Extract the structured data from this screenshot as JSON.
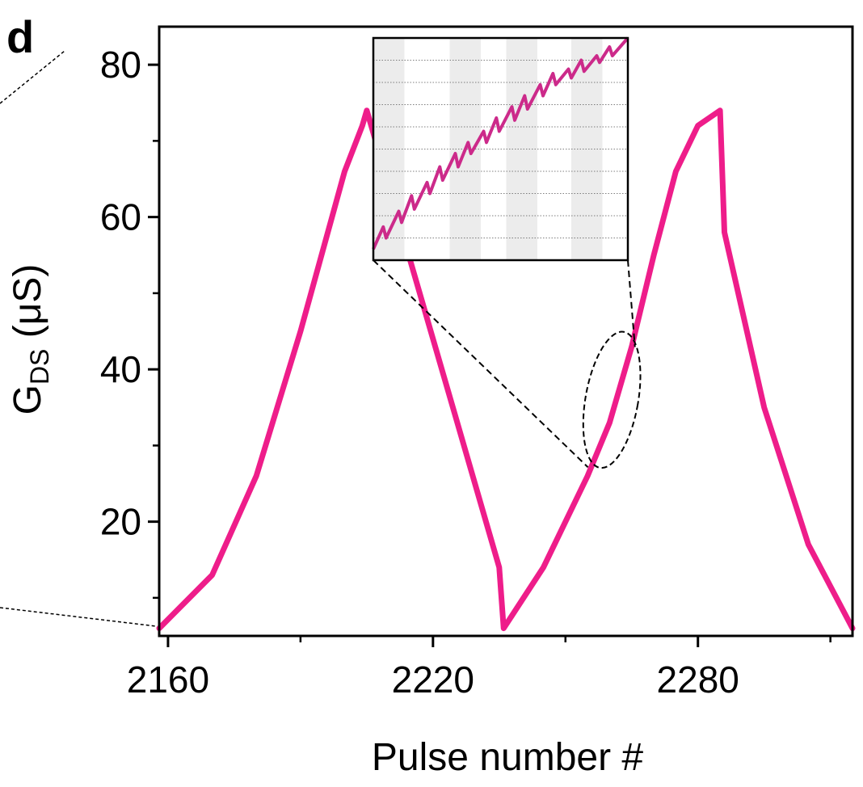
{
  "chart_data": {
    "type": "line",
    "panel_label": "d",
    "xlabel": "Pulse number #",
    "ylabel_main": "G",
    "ylabel_sub": "DS",
    "ylabel_unit": " (μS)",
    "xlim": [
      2158,
      2315
    ],
    "ylim": [
      5,
      85
    ],
    "xticks": [
      2160,
      2220,
      2280
    ],
    "yticks": [
      20,
      40,
      60,
      80
    ],
    "x_minor_ticks": [
      2190,
      2250,
      2310
    ],
    "y_minor_ticks": [
      10,
      30,
      50,
      70
    ],
    "line_color": "#ee1d8a",
    "series": [
      {
        "x": [
          2158,
          2170,
          2180,
          2190,
          2200,
          2204,
          2205,
          2215,
          2225,
          2235,
          2236,
          2245,
          2255,
          2260,
          2265,
          2270,
          2275,
          2280,
          2285,
          2286,
          2295,
          2305,
          2315
        ],
        "y": [
          6,
          13,
          26,
          45,
          66,
          72,
          74,
          54,
          34,
          14,
          6,
          14,
          26,
          33,
          43,
          55,
          66,
          72,
          74,
          58,
          35,
          17,
          6
        ]
      }
    ],
    "zoom_region": {
      "x": [
        2256,
        2265
      ],
      "y": [
        28,
        44
      ]
    },
    "inset": {
      "x": [
        0,
        9
      ],
      "y": [
        0,
        10
      ],
      "shaded_bands": [
        [
          0,
          0.4
        ],
        [
          1,
          1.4
        ],
        [
          2,
          2.4
        ],
        [
          3,
          3.4
        ]
      ],
      "series": {
        "x": [
          0,
          0.35,
          0.45,
          0.9,
          1.0,
          1.35,
          1.45,
          1.9,
          2.0,
          2.35,
          2.45,
          2.9,
          3.0,
          3.35,
          3.45,
          3.9,
          4.0,
          4.35,
          4.45,
          4.9,
          5.0,
          5.35,
          5.45,
          5.9,
          6.0,
          6.35,
          6.45,
          6.9,
          7.0,
          7.35,
          7.45,
          7.9,
          8.0,
          8.35,
          8.45,
          9.0
        ],
        "y": [
          0.5,
          1.5,
          1.0,
          2.2,
          1.7,
          2.9,
          2.3,
          3.5,
          3.0,
          4.2,
          3.6,
          4.8,
          4.2,
          5.3,
          4.8,
          5.8,
          5.3,
          6.4,
          5.8,
          6.9,
          6.3,
          7.4,
          6.8,
          7.9,
          7.4,
          8.4,
          7.9,
          8.6,
          8.2,
          9.0,
          8.5,
          9.2,
          8.9,
          9.6,
          9.2,
          10.0
        ]
      }
    }
  }
}
